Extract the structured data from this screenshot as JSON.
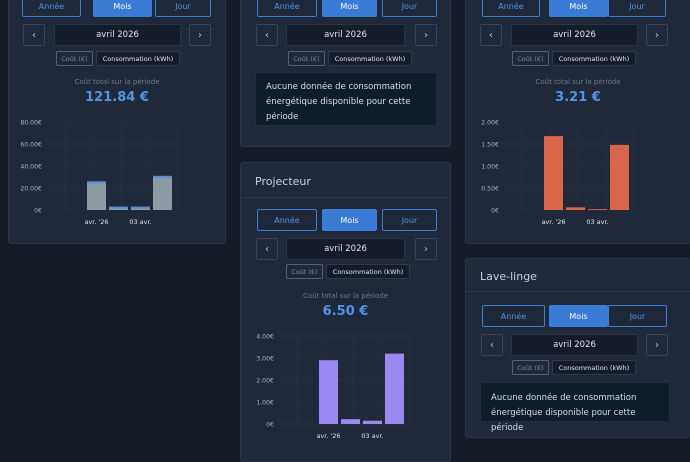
{
  "period_labels": {
    "year": "Année",
    "month": "Mois",
    "day": "Jour"
  },
  "toggle_labels": {
    "cost": "Coût (€)",
    "energy": "Consommation (kWh)"
  },
  "nav": {
    "prev": "‹",
    "next": "›"
  },
  "cost_label": "Coût total sur la période",
  "cards": [
    {
      "title": "",
      "date": "avril 2026",
      "total": "121.84 €"
    },
    {
      "title": "",
      "date": "avril 2026",
      "no_data": "Aucune donnée de consommation énergétique disponible pour cette période"
    },
    {
      "title": "",
      "date": "avril 2026",
      "total": "3.21 €"
    },
    {
      "title": "Projecteur",
      "date": "avril 2026",
      "total": "6.50 €"
    },
    {
      "title": "Lave-linge",
      "date": "avril 2026",
      "no_data": "Aucune donnée de consommation énergétique disponible pour cette période"
    }
  ],
  "chart_data": [
    {
      "type": "bar",
      "title": "",
      "xlabel": "",
      "ylabel": "",
      "ylim": [
        0,
        80
      ],
      "yticks": [
        "0€",
        "20.00€",
        "40.00€",
        "60.00€",
        "80.00€"
      ],
      "xtick_labels": [
        "avr. '26",
        "03 avr."
      ],
      "values": [
        26,
        3,
        3,
        31
      ],
      "color": "#8e9aa3",
      "cap_color": "#5b8ed6"
    },
    {
      "type": "bar",
      "title": "",
      "xlabel": "",
      "ylabel": "",
      "ylim": [
        0,
        2
      ],
      "yticks": [
        "0€",
        "0.50€",
        "1.00€",
        "1.50€",
        "2.00€"
      ],
      "xtick_labels": [
        "avr. '26",
        "03 avr."
      ],
      "values": [
        1.68,
        0.06,
        0.02,
        1.48
      ],
      "color": "#d9654a"
    },
    {
      "type": "bar",
      "title": "",
      "xlabel": "",
      "ylabel": "",
      "ylim": [
        0,
        4
      ],
      "yticks": [
        "0€",
        "1.00€",
        "2.00€",
        "3.00€",
        "4.00€"
      ],
      "xtick_labels": [
        "avr. '26",
        "03 avr."
      ],
      "values": [
        2.9,
        0.22,
        0.15,
        3.2
      ],
      "color": "#9b88f0"
    }
  ]
}
